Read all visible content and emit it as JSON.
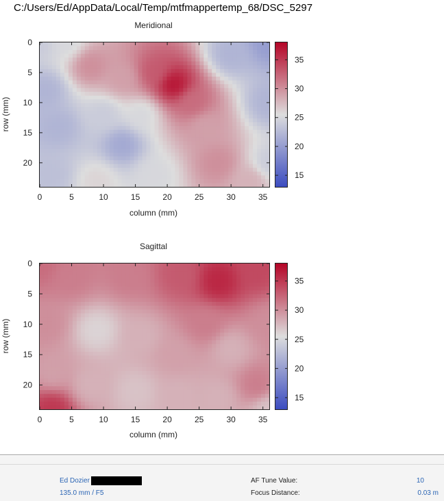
{
  "window": {
    "file_path": "C:/Users/Ed/AppData/Local/Temp/mtfmappertemp_68/DSC_5297"
  },
  "colorbar_ticks": [
    "15",
    "20",
    "25",
    "30",
    "35"
  ],
  "chart_data": [
    {
      "type": "heatmap",
      "title": "Meridional",
      "xlabel": "column (mm)",
      "ylabel": "row (mm)",
      "xlim": [
        0,
        36
      ],
      "ylim": [
        24,
        0
      ],
      "x_ticks": [
        "0",
        "5",
        "10",
        "15",
        "20",
        "25",
        "30",
        "35"
      ],
      "y_ticks": [
        "0",
        "5",
        "10",
        "15",
        "20"
      ],
      "clim": [
        13,
        38
      ],
      "colormap": [
        "#3b4cc0",
        "#dddddd",
        "#b40426"
      ],
      "hotspots": [
        {
          "x": 0,
          "y": 0,
          "value": 24
        },
        {
          "x": 4,
          "y": 0,
          "value": 25
        },
        {
          "x": 36,
          "y": 0,
          "value": 20
        },
        {
          "x": 30,
          "y": 2,
          "value": 22
        },
        {
          "x": 36,
          "y": 10,
          "value": 22
        },
        {
          "x": 36,
          "y": 20,
          "value": 24
        },
        {
          "x": 8,
          "y": 4,
          "value": 30
        },
        {
          "x": 13,
          "y": 6,
          "value": 29
        },
        {
          "x": 21,
          "y": 7,
          "value": 37
        },
        {
          "x": 18,
          "y": 5,
          "value": 33
        },
        {
          "x": 24,
          "y": 10,
          "value": 32
        },
        {
          "x": 26,
          "y": 14,
          "value": 29
        },
        {
          "x": 28,
          "y": 20,
          "value": 30
        },
        {
          "x": 33,
          "y": 23,
          "value": 28
        },
        {
          "x": 1,
          "y": 8,
          "value": 22
        },
        {
          "x": 3,
          "y": 14,
          "value": 22
        },
        {
          "x": 2,
          "y": 22,
          "value": 23
        },
        {
          "x": 10,
          "y": 12,
          "value": 24
        },
        {
          "x": 13,
          "y": 17,
          "value": 21
        },
        {
          "x": 16,
          "y": 12,
          "value": 25
        },
        {
          "x": 18,
          "y": 22,
          "value": 25
        },
        {
          "x": 9,
          "y": 23,
          "value": 26
        }
      ]
    },
    {
      "type": "heatmap",
      "title": "Sagittal",
      "xlabel": "column (mm)",
      "ylabel": "row (mm)",
      "xlim": [
        0,
        36
      ],
      "ylim": [
        24,
        0
      ],
      "x_ticks": [
        "0",
        "5",
        "10",
        "15",
        "20",
        "25",
        "30",
        "35"
      ],
      "y_ticks": [
        "0",
        "5",
        "10",
        "15",
        "20"
      ],
      "clim": [
        13,
        38
      ],
      "colormap": [
        "#3b4cc0",
        "#dddddd",
        "#b40426"
      ],
      "hotspots": [
        {
          "x": 0,
          "y": 0,
          "value": 32
        },
        {
          "x": 5,
          "y": 2,
          "value": 31
        },
        {
          "x": 14,
          "y": 2,
          "value": 31
        },
        {
          "x": 22,
          "y": 2,
          "value": 33
        },
        {
          "x": 28,
          "y": 3,
          "value": 36
        },
        {
          "x": 34,
          "y": 1,
          "value": 34
        },
        {
          "x": 36,
          "y": 10,
          "value": 30
        },
        {
          "x": 26,
          "y": 10,
          "value": 31
        },
        {
          "x": 1,
          "y": 10,
          "value": 30
        },
        {
          "x": 9,
          "y": 11,
          "value": 26
        },
        {
          "x": 16,
          "y": 12,
          "value": 28
        },
        {
          "x": 21,
          "y": 15,
          "value": 29
        },
        {
          "x": 30,
          "y": 14,
          "value": 28
        },
        {
          "x": 34,
          "y": 20,
          "value": 31
        },
        {
          "x": 2,
          "y": 18,
          "value": 29
        },
        {
          "x": 8,
          "y": 20,
          "value": 28
        },
        {
          "x": 15,
          "y": 21,
          "value": 27
        },
        {
          "x": 22,
          "y": 22,
          "value": 28
        },
        {
          "x": 28,
          "y": 22,
          "value": 28
        },
        {
          "x": 2,
          "y": 24,
          "value": 35
        },
        {
          "x": 36,
          "y": 24,
          "value": 27
        }
      ]
    }
  ],
  "info": {
    "author": "Ed Dozier",
    "lens": "135.0 mm / F5",
    "af_tune_label": "AF Tune Value:",
    "af_tune_value": "10",
    "focus_distance_label": "Focus Distance:",
    "focus_distance_value": "0.03 m"
  }
}
